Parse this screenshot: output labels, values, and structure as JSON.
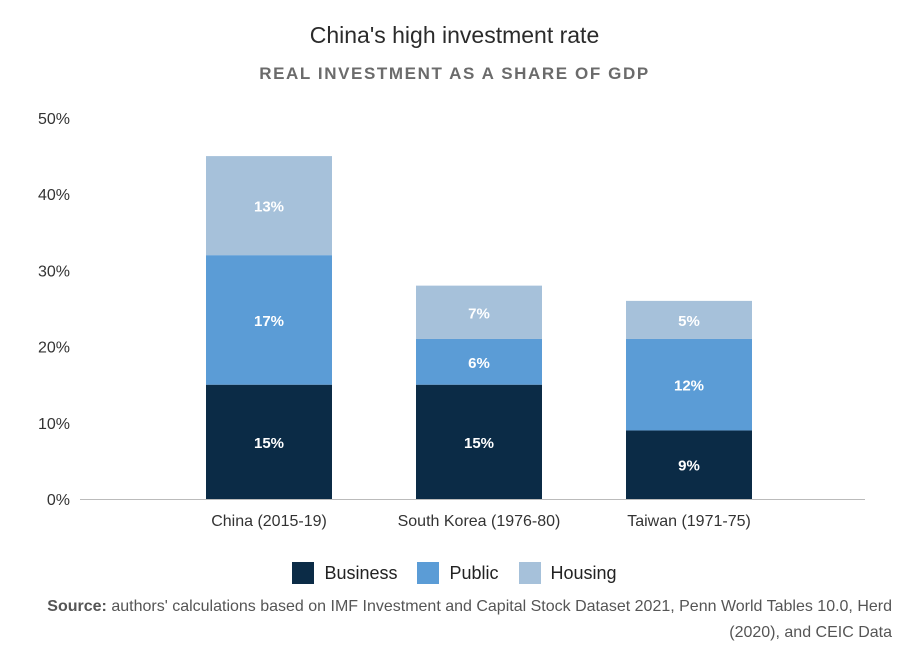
{
  "title": "China's high investment rate",
  "subtitle": "REAL INVESTMENT AS A SHARE OF GDP",
  "source": {
    "label": "Source:",
    "text": " authors' calculations based on IMF Investment and Capital Stock Dataset 2021, Penn World Tables 10.0, Herd (2020), and CEIC Data"
  },
  "colors": {
    "business": "#0b2b46",
    "public": "#5b9cd6",
    "housing": "#a6c1da",
    "axis": "#bbbbbb",
    "tick_text": "#333333",
    "bar_label": "#ffffff"
  },
  "chart_data": {
    "type": "bar",
    "stacked": true,
    "categories": [
      "China (2015-19)",
      "South Korea (1976-80)",
      "Taiwan (1971-75)"
    ],
    "series": [
      {
        "name": "Business",
        "values": [
          15,
          15,
          9
        ],
        "labels": [
          "15%",
          "15%",
          "9%"
        ],
        "color_key": "business"
      },
      {
        "name": "Public",
        "values": [
          17,
          6,
          12
        ],
        "labels": [
          "17%",
          "6%",
          "12%"
        ],
        "color_key": "public"
      },
      {
        "name": "Housing",
        "values": [
          13,
          7,
          5
        ],
        "labels": [
          "13%",
          "7%",
          "5%"
        ],
        "color_key": "housing"
      }
    ],
    "ylim": [
      0,
      50
    ],
    "yticks": [
      0,
      10,
      20,
      30,
      40,
      50
    ],
    "ytick_labels": [
      "0%",
      "10%",
      "20%",
      "30%",
      "40%",
      "50%"
    ],
    "grid": false,
    "legend_position": "bottom-center",
    "xlabel": "",
    "ylabel": ""
  }
}
